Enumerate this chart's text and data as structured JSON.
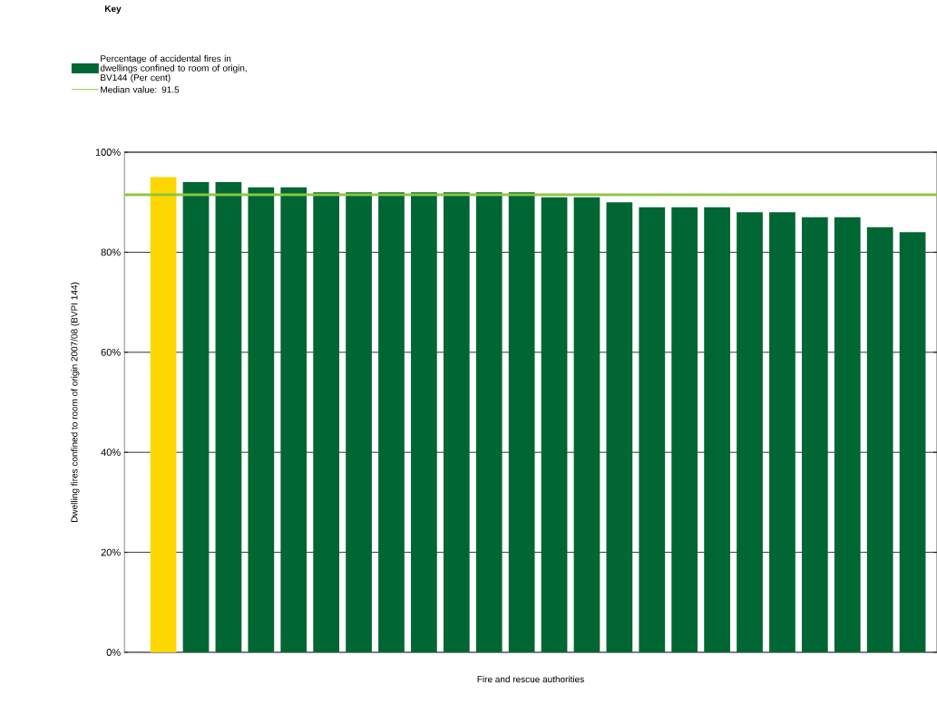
{
  "chart_data": {
    "type": "bar",
    "legend_title": "Key",
    "xlabel": "Fire and rescue authorities",
    "ylabel": "Dwelling fires confined to room of origin 2007/08 (BVPI 144)",
    "categories": [
      null,
      null,
      null,
      null,
      null,
      null,
      null,
      null,
      null,
      null,
      null,
      null,
      null,
      null,
      null,
      null,
      null,
      null,
      null,
      null,
      null,
      null,
      null,
      null
    ],
    "series": [
      {
        "name": "Percentage of accidental fires in dwellings confined to room of origin, BV144 (Per cent)",
        "color": "#006633",
        "values": [
          95,
          94,
          94,
          93,
          93,
          92,
          92,
          92,
          92,
          92,
          92,
          92,
          91,
          91,
          90,
          89,
          89,
          89,
          88,
          88,
          87,
          87,
          85,
          84
        ],
        "colors": [
          "#ffd700",
          "#006633",
          "#006633",
          "#006633",
          "#006633",
          "#006633",
          "#006633",
          "#006633",
          "#006633",
          "#006633",
          "#006633",
          "#006633",
          "#006633",
          "#006633",
          "#006633",
          "#006633",
          "#006633",
          "#006633",
          "#006633",
          "#006633",
          "#006633",
          "#006633",
          "#006633",
          "#006633"
        ]
      }
    ],
    "ylim": [
      0,
      100
    ],
    "yticks": [
      {
        "value": 0,
        "label": "0%"
      },
      {
        "value": 20,
        "label": "20%"
      },
      {
        "value": 40,
        "label": "40%"
      },
      {
        "value": 60,
        "label": "60%"
      },
      {
        "value": 80,
        "label": "80%"
      },
      {
        "value": 100,
        "label": "100%"
      }
    ],
    "grid": "y",
    "ref_lines": [
      {
        "axis": "y",
        "value": 91.5,
        "label": "Median value: 91.5",
        "color": "#8dc63f"
      }
    ],
    "legend": "top left"
  }
}
